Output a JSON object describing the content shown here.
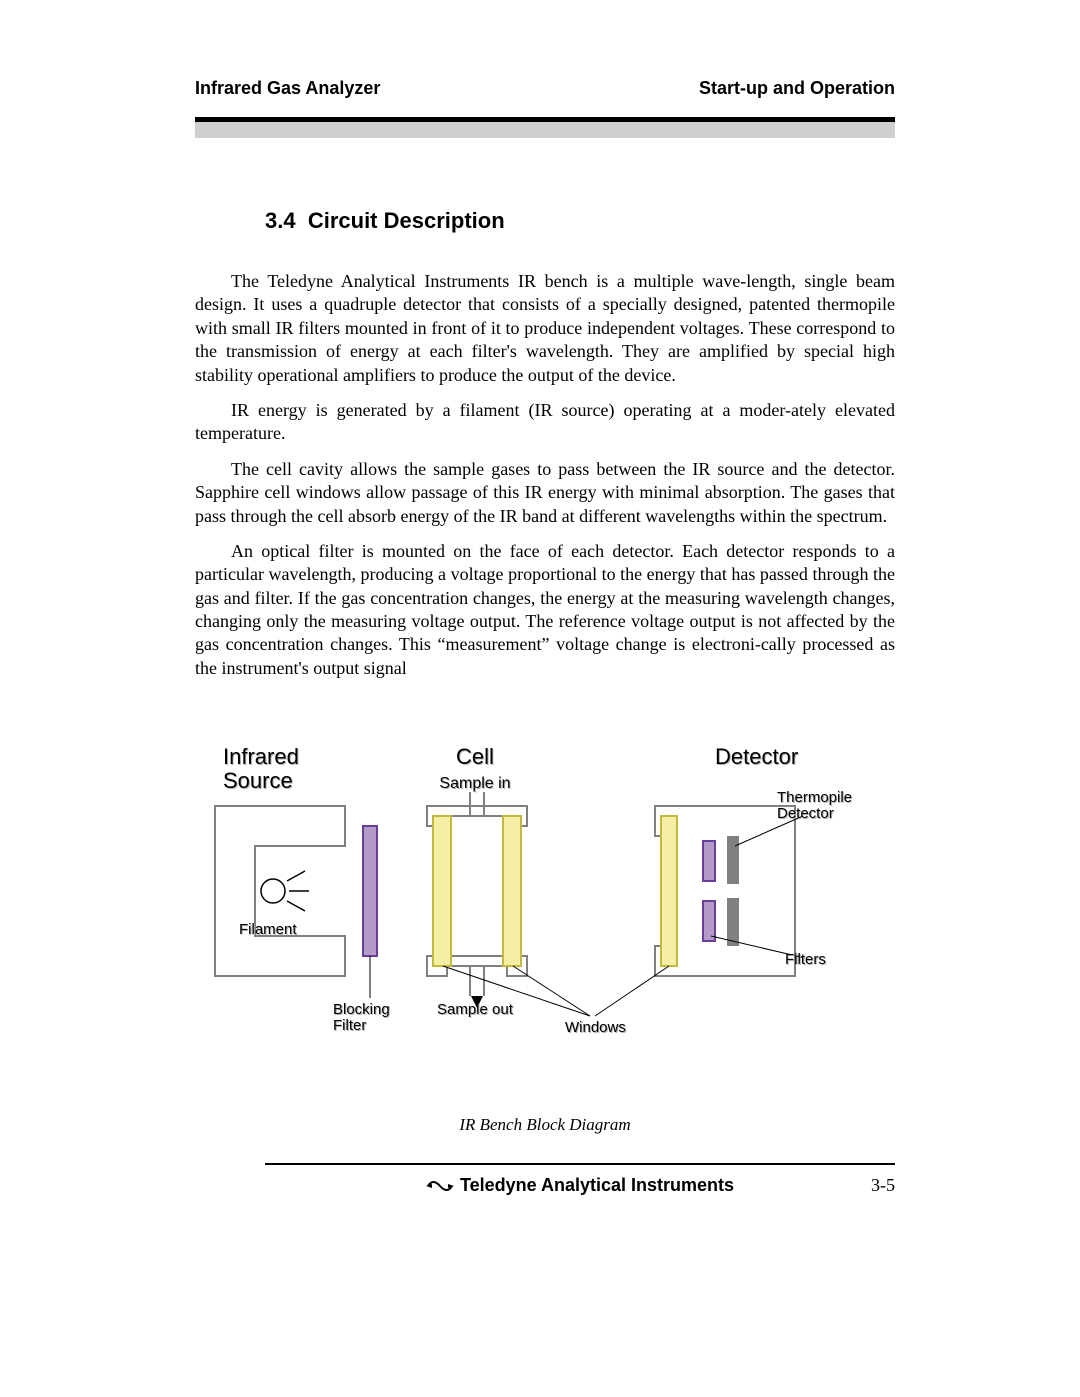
{
  "header": {
    "left": "Infrared Gas Analyzer",
    "right": "Start-up and Operation"
  },
  "section": {
    "number": "3.4",
    "title": "Circuit Description"
  },
  "paragraphs": [
    "The Teledyne Analytical Instruments IR bench is a multiple wave-length, single beam design. It uses a quadruple detector that consists of a specially designed, patented thermopile with small IR filters mounted in front of it to produce independent voltages. These correspond to the transmission of energy at each filter's wavelength. They are amplified by special high stability operational amplifiers to produce the output of the device.",
    "IR energy is generated by a filament (IR source) operating at a moder-ately elevated temperature.",
    "The cell cavity allows the sample gases to pass between the IR source and the detector. Sapphire cell windows allow passage of this IR energy with minimal absorption. The gases that pass through the cell absorb energy of the IR band at different wavelengths within the spectrum.",
    "An optical filter is mounted on the face of each detector. Each detector responds to a particular wavelength, producing a voltage proportional to the energy that has passed through the gas and filter. If the gas concentration changes, the energy at the measuring wavelength changes, changing only the measuring voltage output. The reference voltage output is not affected by the gas concentration changes. This “measurement” voltage  change is electroni-cally processed as the instrument's output signal"
  ],
  "figure": {
    "caption": "IR Bench Block Diagram",
    "labels": {
      "source_title": "Infrared Source",
      "cell_title": "Cell",
      "detector_title": "Detector",
      "sample_in": "Sample  in",
      "sample_out": "Sample  out",
      "filament": "Filament",
      "blocking_filter": "Blocking Filter",
      "windows": "Windows",
      "thermopile": "Thermopile Detector",
      "filters": "Filters"
    },
    "colors": {
      "source_outline": "#808080",
      "blocking_filter_fill": "#b39ac7",
      "blocking_filter_stroke": "#6a3d9a",
      "cell_window_fill": "#f5efa6",
      "cell_window_stroke": "#c3b93a",
      "cell_body_stroke": "#808080",
      "detector_body_stroke": "#808080",
      "detector_filter_fill": "#b39ac7",
      "detector_filter_stroke": "#6a3d9a",
      "thermopile_fill": "#808080",
      "leader_line": "#000000",
      "text_shadow": "#b0b0b0"
    }
  },
  "footer": {
    "brand": "Teledyne Analytical Instruments",
    "page": "3-5"
  }
}
